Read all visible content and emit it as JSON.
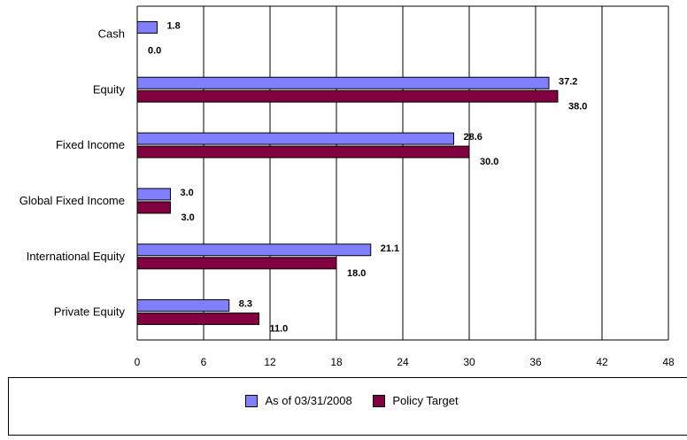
{
  "chart_data": {
    "type": "bar",
    "orientation": "horizontal",
    "categories": [
      "Cash",
      "Equity",
      "Fixed Income",
      "Global Fixed Income",
      "International Equity",
      "Private Equity"
    ],
    "series": [
      {
        "name": "As of 03/31/2008",
        "values": [
          1.8,
          37.2,
          28.6,
          3.0,
          21.1,
          8.3
        ],
        "labels": [
          "1.8",
          "37.2",
          "28.6",
          "3.0",
          "21.1",
          "8.3"
        ],
        "color": "#8080ff"
      },
      {
        "name": "Policy Target",
        "values": [
          0.0,
          38.0,
          30.0,
          3.0,
          18.0,
          11.0
        ],
        "labels": [
          "0.0",
          "38.0",
          "30.0",
          "3.0",
          "18.0",
          "11.0"
        ],
        "color": "#800040"
      }
    ],
    "xticks": [
      0,
      6,
      12,
      18,
      24,
      30,
      36,
      42,
      48
    ],
    "xlim": [
      0,
      48
    ],
    "title": "",
    "xlabel": "",
    "ylabel": "",
    "grid": "vertical",
    "legend_position": "bottom"
  }
}
